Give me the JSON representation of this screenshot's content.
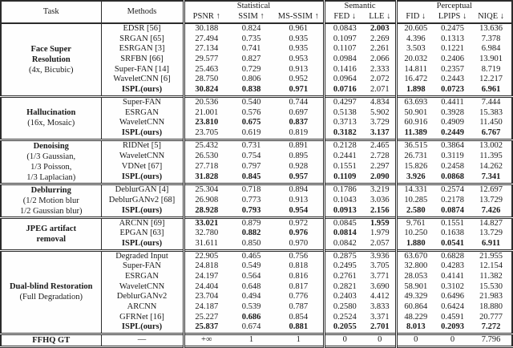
{
  "table": {
    "header": {
      "task_label": "Task",
      "methods_label": "Methods",
      "groups": [
        {
          "label": "Statistical"
        },
        {
          "label": "Semantic"
        },
        {
          "label": "Perceptual"
        }
      ],
      "metrics": [
        "PSNR ↑",
        "SSIM ↑",
        "MS-SSIM ↑",
        "FED ↓",
        "LLE ↓",
        "FID ↓",
        "LPIPS ↓",
        "NIQE ↓"
      ]
    },
    "blocks": [
      {
        "task": [
          {
            "text": "Face Super",
            "bold": true
          },
          {
            "text": "Resolution",
            "bold": true
          },
          {
            "text": "(4x, Bicubic)",
            "bold": false
          }
        ],
        "rows": [
          {
            "method": "EDSR [56]",
            "method_bold": false,
            "values": [
              "30.188",
              "0.824",
              "0.961",
              "0.0843",
              "2.003",
              "20.605",
              "0.2475",
              "13.636"
            ],
            "bold": [
              0,
              0,
              0,
              0,
              1,
              0,
              0,
              0
            ]
          },
          {
            "method": "SRGAN [65]",
            "method_bold": false,
            "values": [
              "27.494",
              "0.735",
              "0.935",
              "0.1097",
              "2.269",
              "4.396",
              "0.1313",
              "7.378"
            ],
            "bold": [
              0,
              0,
              0,
              0,
              0,
              0,
              0,
              0
            ]
          },
          {
            "method": "ESRGAN [3]",
            "method_bold": false,
            "values": [
              "27.134",
              "0.741",
              "0.935",
              "0.1107",
              "2.261",
              "3.503",
              "0.1221",
              "6.984"
            ],
            "bold": [
              0,
              0,
              0,
              0,
              0,
              0,
              0,
              0
            ]
          },
          {
            "method": "SRFBN [66]",
            "method_bold": false,
            "values": [
              "29.577",
              "0.827",
              "0.953",
              "0.0984",
              "2.066",
              "20.032",
              "0.2406",
              "13.901"
            ],
            "bold": [
              0,
              0,
              0,
              0,
              0,
              0,
              0,
              0
            ]
          },
          {
            "method": "Super-FAN [14]",
            "method_bold": false,
            "values": [
              "25.463",
              "0.729",
              "0.913",
              "0.1416",
              "2.333",
              "14.811",
              "0.2357",
              "8.719"
            ],
            "bold": [
              0,
              0,
              0,
              0,
              0,
              0,
              0,
              0
            ]
          },
          {
            "method": "WaveletCNN [6]",
            "method_bold": false,
            "values": [
              "28.750",
              "0.806",
              "0.952",
              "0.0964",
              "2.072",
              "16.472",
              "0.2443",
              "12.217"
            ],
            "bold": [
              0,
              0,
              0,
              0,
              0,
              0,
              0,
              0
            ]
          },
          {
            "method": "ISPL(ours)",
            "method_bold": true,
            "values": [
              "30.824",
              "0.838",
              "0.971",
              "0.0716",
              "2.071",
              "1.898",
              "0.0723",
              "6.961"
            ],
            "bold": [
              1,
              1,
              1,
              1,
              0,
              1,
              1,
              1
            ]
          }
        ]
      },
      {
        "task": [
          {
            "text": "Hallucination",
            "bold": true
          },
          {
            "text": "(16x, Mosaic)",
            "bold": false
          }
        ],
        "rows": [
          {
            "method": "Super-FAN",
            "method_bold": false,
            "values": [
              "20.536",
              "0.540",
              "0.744",
              "0.4297",
              "4.834",
              "63.693",
              "0.4411",
              "7.444"
            ],
            "bold": [
              0,
              0,
              0,
              0,
              0,
              0,
              0,
              0
            ]
          },
          {
            "method": "ESRGAN",
            "method_bold": false,
            "values": [
              "21.001",
              "0.576",
              "0.697",
              "0.5138",
              "5.902",
              "50.901",
              "0.3928",
              "15.383"
            ],
            "bold": [
              0,
              0,
              0,
              0,
              0,
              0,
              0,
              0
            ]
          },
          {
            "method": "WaveletCNN",
            "method_bold": false,
            "values": [
              "23.810",
              "0.675",
              "0.837",
              "0.3713",
              "3.729",
              "60.916",
              "0.4909",
              "11.450"
            ],
            "bold": [
              1,
              1,
              1,
              0,
              0,
              0,
              0,
              0
            ]
          },
          {
            "method": "ISPL(ours)",
            "method_bold": true,
            "values": [
              "23.705",
              "0.619",
              "0.819",
              "0.3182",
              "3.137",
              "11.389",
              "0.2449",
              "6.767"
            ],
            "bold": [
              0,
              0,
              0,
              1,
              1,
              1,
              1,
              1
            ]
          }
        ]
      },
      {
        "task": [
          {
            "text": "Denoising",
            "bold": true
          },
          {
            "text": "(1/3 Gaussian,",
            "bold": false
          },
          {
            "text": "1/3 Poisson,",
            "bold": false
          },
          {
            "text": "1/3 Laplacian)",
            "bold": false
          }
        ],
        "rows": [
          {
            "method": "RIDNet [5]",
            "method_bold": false,
            "values": [
              "25.432",
              "0.731",
              "0.891",
              "0.2128",
              "2.465",
              "36.515",
              "0.3864",
              "13.002"
            ],
            "bold": [
              0,
              0,
              0,
              0,
              0,
              0,
              0,
              0
            ]
          },
          {
            "method": "WaveletCNN",
            "method_bold": false,
            "values": [
              "26.530",
              "0.754",
              "0.895",
              "0.2441",
              "2.728",
              "26.731",
              "0.3119",
              "11.395"
            ],
            "bold": [
              0,
              0,
              0,
              0,
              0,
              0,
              0,
              0
            ]
          },
          {
            "method": "VDNet [67]",
            "method_bold": false,
            "values": [
              "27.718",
              "0.797",
              "0.928",
              "0.1551",
              "2.297",
              "15.826",
              "0.2458",
              "14.262"
            ],
            "bold": [
              0,
              0,
              0,
              0,
              0,
              0,
              0,
              0
            ]
          },
          {
            "method": "ISPL(ours)",
            "method_bold": true,
            "values": [
              "31.828",
              "0.845",
              "0.957",
              "0.1109",
              "2.090",
              "3.926",
              "0.0868",
              "7.341"
            ],
            "bold": [
              1,
              1,
              1,
              1,
              1,
              1,
              1,
              1
            ]
          }
        ]
      },
      {
        "task": [
          {
            "text": "Deblurring",
            "bold": true
          },
          {
            "text": "(1/2 Motion blur",
            "bold": false
          },
          {
            "text": "1/2 Gaussian blur)",
            "bold": false
          }
        ],
        "rows": [
          {
            "method": "DeblurGAN [4]",
            "method_bold": false,
            "values": [
              "25.304",
              "0.718",
              "0.894",
              "0.1786",
              "3.219",
              "14.331",
              "0.2574",
              "12.697"
            ],
            "bold": [
              0,
              0,
              0,
              0,
              0,
              0,
              0,
              0
            ]
          },
          {
            "method": "DeblurGANv2 [68]",
            "method_bold": false,
            "values": [
              "26.908",
              "0.773",
              "0.913",
              "0.1043",
              "3.036",
              "10.285",
              "0.2178",
              "13.729"
            ],
            "bold": [
              0,
              0,
              0,
              0,
              0,
              0,
              0,
              0
            ]
          },
          {
            "method": "ISPL(ours)",
            "method_bold": true,
            "values": [
              "28.928",
              "0.793",
              "0.954",
              "0.0913",
              "2.156",
              "2.580",
              "0.0874",
              "7.426"
            ],
            "bold": [
              1,
              1,
              1,
              1,
              1,
              1,
              1,
              1
            ]
          }
        ]
      },
      {
        "task": [
          {
            "text": "JPEG artifact",
            "bold": true
          },
          {
            "text": "removal",
            "bold": true
          }
        ],
        "rows": [
          {
            "method": "ARCNN [69]",
            "method_bold": false,
            "values": [
              "33.021",
              "0.879",
              "0.972",
              "0.0845",
              "1.959",
              "9.761",
              "0.1551",
              "14.827"
            ],
            "bold": [
              1,
              0,
              0,
              0,
              1,
              0,
              0,
              0
            ]
          },
          {
            "method": "EPGAN [63]",
            "method_bold": false,
            "values": [
              "32.780",
              "0.882",
              "0.976",
              "0.0814",
              "1.979",
              "10.250",
              "0.1638",
              "13.729"
            ],
            "bold": [
              0,
              1,
              1,
              1,
              0,
              0,
              0,
              0
            ]
          },
          {
            "method": "ISPL(ours)",
            "method_bold": true,
            "values": [
              "31.611",
              "0.850",
              "0.970",
              "0.0842",
              "2.057",
              "1.880",
              "0.0541",
              "6.911"
            ],
            "bold": [
              0,
              0,
              0,
              0,
              0,
              1,
              1,
              1
            ]
          }
        ]
      },
      {
        "task": [
          {
            "text": "Dual-blind Restoration",
            "bold": true
          },
          {
            "text": "(Full Degradation)",
            "bold": false
          }
        ],
        "rows": [
          {
            "method": "Degraded Input",
            "method_bold": false,
            "values": [
              "22.905",
              "0.465",
              "0.756",
              "0.2875",
              "3.936",
              "63.670",
              "0.6828",
              "21.955"
            ],
            "bold": [
              0,
              0,
              0,
              0,
              0,
              0,
              0,
              0
            ]
          },
          {
            "method": "Super-FAN",
            "method_bold": false,
            "values": [
              "24.818",
              "0.549",
              "0.818",
              "0.2495",
              "3.705",
              "32.800",
              "0.4283",
              "12.154"
            ],
            "bold": [
              0,
              0,
              0,
              0,
              0,
              0,
              0,
              0
            ]
          },
          {
            "method": "ESRGAN",
            "method_bold": false,
            "values": [
              "24.197",
              "0.564",
              "0.816",
              "0.2761",
              "3.771",
              "28.053",
              "0.4141",
              "11.382"
            ],
            "bold": [
              0,
              0,
              0,
              0,
              0,
              0,
              0,
              0
            ]
          },
          {
            "method": "WaveletCNN",
            "method_bold": false,
            "values": [
              "24.404",
              "0.648",
              "0.817",
              "0.2821",
              "3.690",
              "58.901",
              "0.3102",
              "15.530"
            ],
            "bold": [
              0,
              0,
              0,
              0,
              0,
              0,
              0,
              0
            ]
          },
          {
            "method": "DeblurGANv2",
            "method_bold": false,
            "values": [
              "23.704",
              "0.494",
              "0.776",
              "0.2403",
              "4.412",
              "49.329",
              "0.6496",
              "21.983"
            ],
            "bold": [
              0,
              0,
              0,
              0,
              0,
              0,
              0,
              0
            ]
          },
          {
            "method": "ARCNN",
            "method_bold": false,
            "values": [
              "24.187",
              "0.539",
              "0.787",
              "0.2580",
              "3.833",
              "60.864",
              "0.6424",
              "18.880"
            ],
            "bold": [
              0,
              0,
              0,
              0,
              0,
              0,
              0,
              0
            ]
          },
          {
            "method": "GFRNet [16]",
            "method_bold": false,
            "values": [
              "25.227",
              "0.686",
              "0.854",
              "0.2524",
              "3.371",
              "48.229",
              "0.4591",
              "20.777"
            ],
            "bold": [
              0,
              1,
              0,
              0,
              0,
              0,
              0,
              0
            ]
          },
          {
            "method": "ISPL(ours)",
            "method_bold": true,
            "values": [
              "25.837",
              "0.674",
              "0.881",
              "0.2055",
              "2.701",
              "8.013",
              "0.2093",
              "7.272"
            ],
            "bold": [
              1,
              0,
              1,
              1,
              1,
              1,
              1,
              1
            ]
          }
        ]
      },
      {
        "task": [
          {
            "text": "FFHQ GT",
            "bold": true
          }
        ],
        "rows": [
          {
            "method": "—",
            "method_bold": false,
            "values": [
              "+∞",
              "1",
              "1",
              "0",
              "0",
              "0",
              "0",
              "7.796"
            ],
            "bold": [
              0,
              0,
              0,
              0,
              0,
              0,
              0,
              0
            ]
          }
        ]
      }
    ]
  }
}
